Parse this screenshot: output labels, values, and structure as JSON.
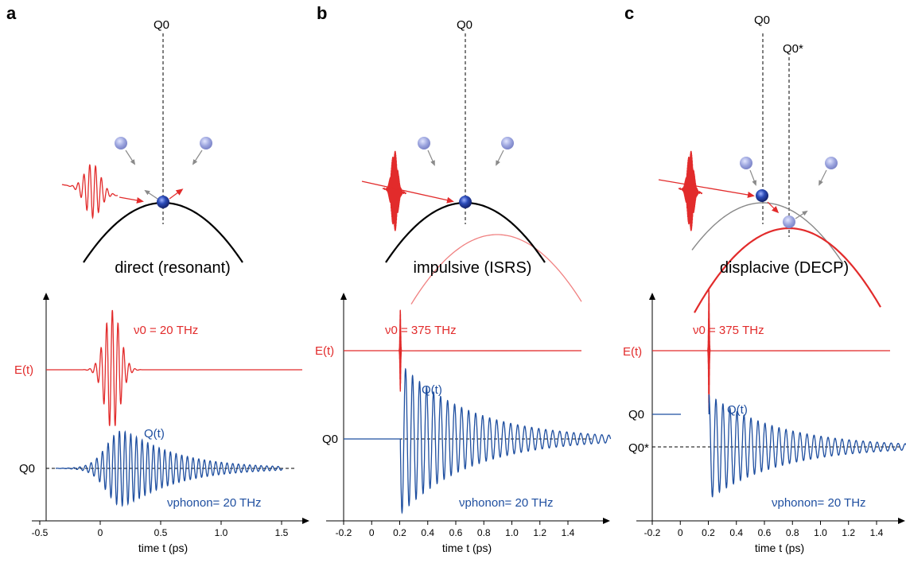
{
  "colors": {
    "pulse": "#e22b2b",
    "phonon": "#1f4fa0",
    "potential": "#000000",
    "potential_excited": "#e22b2b",
    "ball": "#1f3d9e",
    "ball_ghost": "#8c96d6"
  },
  "panels": [
    {
      "letter": "a",
      "caption": "direct (resonant)",
      "q0_top": "Q0",
      "pulse_label": "ν0 = 20 THz",
      "e_label": "E(t)",
      "q_label": "Q(t)",
      "q0_axis": "Q0",
      "phonon_label": "νphonon= 20 THz",
      "xlabel": "time t (ps)",
      "xticks": [
        "-0.5",
        "0",
        "0.5",
        "1.0",
        "1.5"
      ]
    },
    {
      "letter": "b",
      "caption": "impulsive (ISRS)",
      "q0_top": "Q0",
      "pulse_label": "ν0 = 375 THz",
      "e_label": "E(t)",
      "q_label": "Q(t)",
      "q0_axis": "Q0",
      "phonon_label": "νphonon= 20 THz",
      "xlabel": "time t (ps)",
      "xticks": [
        "-0.2",
        "0",
        "0.2",
        "0.4",
        "0.6",
        "0.8",
        "1.0",
        "1.2",
        "1.4"
      ]
    },
    {
      "letter": "c",
      "caption": "displacive (DECP)",
      "q0_top": "Q0",
      "q0star_top": "Q0*",
      "pulse_label": "ν0 = 375 THz",
      "e_label": "E(t)",
      "q_label": "Q(t)",
      "q0_axis": "Q0",
      "q0star_axis": "Q0*",
      "phonon_label": "νphonon= 20 THz",
      "xlabel": "time t (ps)",
      "xticks": [
        "-0.2",
        "0",
        "0.2",
        "0.4",
        "0.6",
        "0.8",
        "1.0",
        "1.2",
        "1.4"
      ]
    }
  ]
}
